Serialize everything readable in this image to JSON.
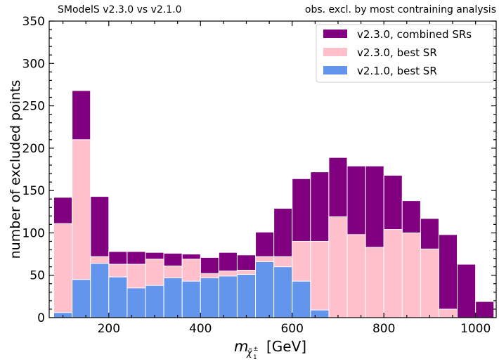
{
  "chart_data": {
    "type": "bar",
    "subtype": "stacked-overlay-histogram",
    "header_left": "SModelS v2.3.0 vs v2.1.0",
    "header_right": "obs. excl. by most contraining analysis",
    "xlabel_main": "m",
    "xlabel_sub": "χ̃",
    "xlabel_sub_sup": "±",
    "xlabel_sub_sub": "1",
    "xlabel_unit": "[GeV]",
    "ylabel": "number of excluded points",
    "xlim": [
      70,
      1045
    ],
    "ylim": [
      0,
      350
    ],
    "x_ticks": [
      "200",
      "400",
      "600",
      "800",
      "1000"
    ],
    "y_ticks": [
      "0",
      "50",
      "100",
      "150",
      "200",
      "250",
      "300",
      "350"
    ],
    "legend_position": "top-right",
    "bin_edges": [
      80,
      120,
      160,
      200,
      240,
      280,
      320,
      360,
      400,
      440,
      480,
      520,
      560,
      600,
      640,
      680,
      720,
      760,
      800,
      840,
      880,
      920,
      960,
      1000,
      1040
    ],
    "series": [
      {
        "name": "v2.3.0, combined SRs",
        "color": "#800080",
        "values": [
          142,
          268,
          143,
          78,
          78,
          77,
          76,
          75,
          71,
          77,
          74,
          101,
          129,
          164,
          172,
          189,
          179,
          179,
          168,
          138,
          117,
          98,
          63,
          19
        ]
      },
      {
        "name": "v2.3.0, best SR",
        "color": "#ffc0cb",
        "values": [
          111,
          210,
          72,
          63,
          63,
          69,
          61,
          69,
          52,
          55,
          56,
          72,
          72,
          90,
          90,
          119,
          98,
          83,
          104,
          100,
          81,
          10,
          0,
          0
        ]
      },
      {
        "name": "v2.1.0, best SR",
        "color": "#6495ed",
        "values": [
          6,
          45,
          64,
          48,
          35,
          38,
          47,
          43,
          47,
          49,
          51,
          66,
          60,
          43,
          9,
          0,
          0,
          0,
          0,
          0,
          0,
          0,
          0,
          0
        ]
      }
    ]
  }
}
